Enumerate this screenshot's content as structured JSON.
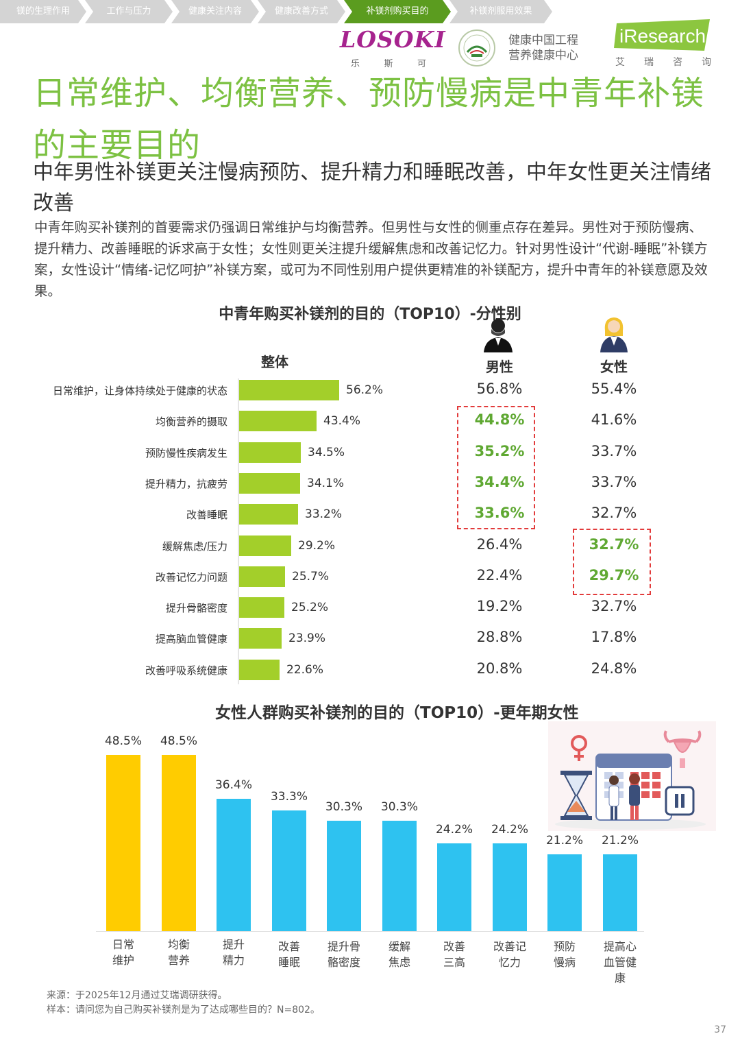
{
  "nav": {
    "tabs": [
      "镁的生理作用",
      "工作与压力",
      "健康关注内容",
      "健康改善方式",
      "补镁剂购买目的",
      "补镁剂服用效果"
    ],
    "active_index": 4
  },
  "logos": {
    "losoki": "LOSOKI",
    "losoki_sub": [
      "乐",
      "斯",
      "可"
    ],
    "cn_line1": "健康中国工程",
    "cn_line2": "营养健康中心",
    "iresearch": "iResearch",
    "iresearch_sub": [
      "艾",
      "瑞",
      "咨",
      "询"
    ]
  },
  "title": "日常维护、均衡营养、预防慢病是中青年补镁的主要目的",
  "subtitle": "中年男性补镁更关注慢病预防、提升精力和睡眠改善，中年女性更关注情绪改善",
  "paragraph": "中青年购买补镁剂的首要需求仍强调日常维护与均衡营养。但男性与女性的侧重点存在差异。男性对于预防慢病、提升精力、改善睡眠的诉求高于女性；女性则更关注提升缓解焦虑和改善记忆力。针对男性设计“代谢-睡眠”补镁方案，女性设计“情绪-记忆呵护”补镁方案，或可为不同性别用户提供更精准的补镁配方，提升中青年的补镁意愿及效果。",
  "chart1": {
    "title": "中青年购买补镁剂的目的（TOP10）-分性别",
    "col_overall": "整体",
    "col_male": "男性",
    "col_female": "女性",
    "male_icon": "man-icon",
    "female_icon": "woman-icon"
  },
  "chart2": {
    "title": "女性人群购买补镁剂的目的（TOP10）-更年期女性",
    "illustration": "menopause-illustration-icon"
  },
  "colors": {
    "green_title": "#7cc142",
    "bar_green": "#a3cf2a",
    "bar_yellow": "#ffcc00",
    "bar_blue": "#2ec2f0",
    "highlight_green": "#5fa832",
    "dash_red": "#e23b3b",
    "active_tab": "#5b9c1f"
  },
  "chart_data": [
    {
      "type": "bar",
      "orientation": "horizontal",
      "title": "中青年购买补镁剂的目的（TOP10）-分性别",
      "categories": [
        "日常维护，让身体持续处于健康的状态",
        "均衡营养的摄取",
        "预防慢性疾病发生",
        "提升精力，抗疲劳",
        "改善睡眠",
        "缓解焦虑/压力",
        "改善记忆力问题",
        "提升骨骼密度",
        "提高脑血管健康",
        "改善呼吸系统健康"
      ],
      "series": [
        {
          "name": "整体",
          "values": [
            56.2,
            43.4,
            34.5,
            34.1,
            33.2,
            29.2,
            25.7,
            25.2,
            23.9,
            22.6
          ]
        },
        {
          "name": "男性",
          "values": [
            56.8,
            44.8,
            35.2,
            34.4,
            33.6,
            26.4,
            22.4,
            19.2,
            28.8,
            20.8
          ]
        },
        {
          "name": "女性",
          "values": [
            55.4,
            41.6,
            33.7,
            33.7,
            32.7,
            32.7,
            29.7,
            32.7,
            17.8,
            24.8
          ]
        }
      ],
      "highlighted": {
        "男性": [
          1,
          2,
          3,
          4
        ],
        "女性": [
          5,
          6
        ]
      },
      "unit": "%"
    },
    {
      "type": "bar",
      "orientation": "vertical",
      "title": "女性人群购买补镁剂的目的（TOP10）-更年期女性",
      "categories": [
        "日常维护",
        "均衡营养",
        "提升精力",
        "改善睡眠",
        "提升骨骼密度",
        "缓解焦虑",
        "改善三高",
        "改善记忆力",
        "预防慢病",
        "提高心血管健康"
      ],
      "category_lines": [
        [
          "日常",
          "维护"
        ],
        [
          "均衡",
          "营养"
        ],
        [
          "提升",
          "精力"
        ],
        [
          "改善",
          "睡眠"
        ],
        [
          "提升骨",
          "骼密度"
        ],
        [
          "缓解",
          "焦虑"
        ],
        [
          "改善",
          "三高"
        ],
        [
          "改善记",
          "忆力"
        ],
        [
          "预防",
          "慢病"
        ],
        [
          "提高心",
          "血管健",
          "康"
        ]
      ],
      "values": [
        48.5,
        48.5,
        36.4,
        33.3,
        30.3,
        30.3,
        24.2,
        24.2,
        21.2,
        21.2
      ],
      "bar_colors": [
        "#ffcc00",
        "#ffcc00",
        "#2ec2f0",
        "#2ec2f0",
        "#2ec2f0",
        "#2ec2f0",
        "#2ec2f0",
        "#2ec2f0",
        "#2ec2f0",
        "#2ec2f0"
      ],
      "unit": "%"
    }
  ],
  "source": {
    "line1": "来源：于2025年12月通过艾瑞调研获得。",
    "line2": "样本：请问您为自己购买补镁剂是为了达成哪些目的？N=802。"
  },
  "page_number": "37"
}
